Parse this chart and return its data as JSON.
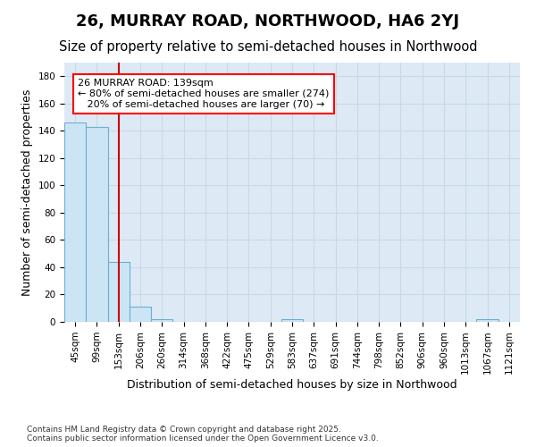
{
  "title": "26, MURRAY ROAD, NORTHWOOD, HA6 2YJ",
  "subtitle": "Size of property relative to semi-detached houses in Northwood",
  "xlabel": "Distribution of semi-detached houses by size in Northwood",
  "ylabel": "Number of semi-detached properties",
  "categories": [
    "45sqm",
    "99sqm",
    "153sqm",
    "206sqm",
    "260sqm",
    "314sqm",
    "368sqm",
    "422sqm",
    "475sqm",
    "529sqm",
    "583sqm",
    "637sqm",
    "691sqm",
    "744sqm",
    "798sqm",
    "852sqm",
    "906sqm",
    "960sqm",
    "1013sqm",
    "1067sqm",
    "1121sqm"
  ],
  "values": [
    146,
    143,
    44,
    11,
    2,
    0,
    0,
    0,
    0,
    0,
    2,
    0,
    0,
    0,
    0,
    0,
    0,
    0,
    0,
    2,
    0
  ],
  "bar_color": "#cce5f5",
  "bar_edge_color": "#6baed6",
  "grid_color": "#c8d8ea",
  "background_color": "#ddeaf5",
  "red_line_color": "#cc0000",
  "red_line_x": 2.0,
  "annotation_text": "26 MURRAY ROAD: 139sqm\n← 80% of semi-detached houses are smaller (274)\n   20% of semi-detached houses are larger (70) →",
  "footer": "Contains HM Land Registry data © Crown copyright and database right 2025.\nContains public sector information licensed under the Open Government Licence v3.0.",
  "ylim": [
    0,
    190
  ],
  "xlim_left": -0.5,
  "title_fontsize": 13,
  "subtitle_fontsize": 10.5,
  "ylabel_fontsize": 9,
  "xlabel_fontsize": 9,
  "tick_fontsize": 7.5,
  "ann_fontsize": 8,
  "footer_fontsize": 6.5
}
